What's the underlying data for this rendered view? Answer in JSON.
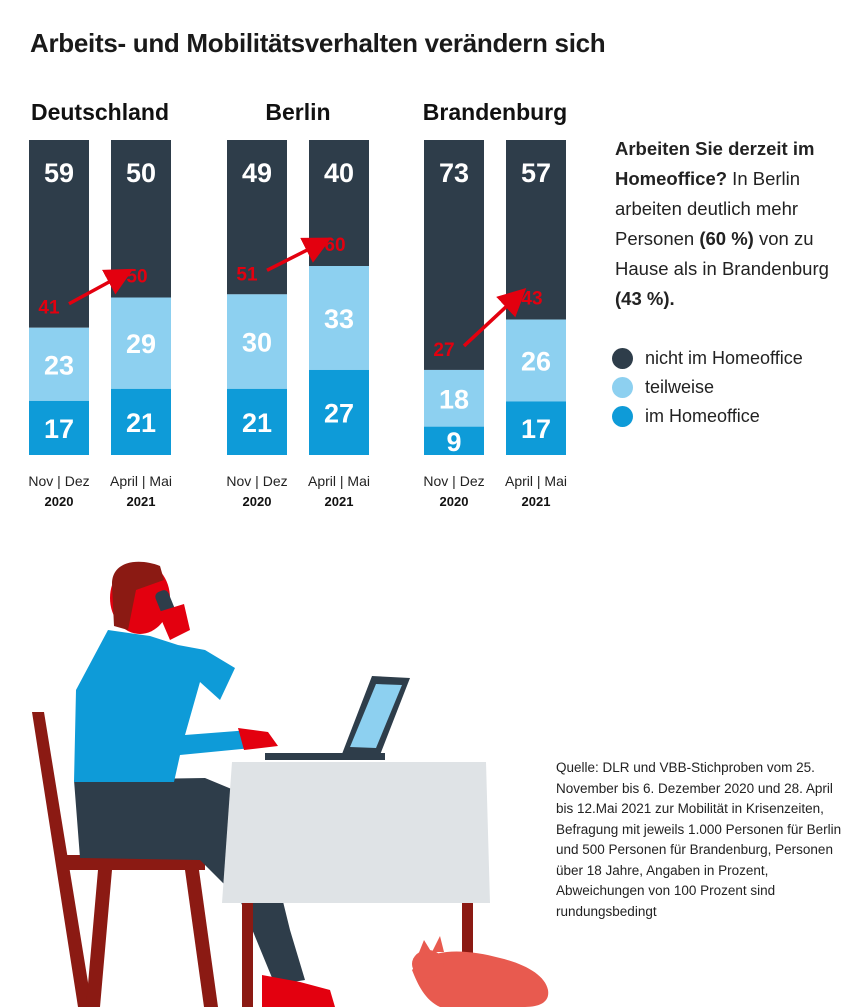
{
  "title": "Arbeits- und Mobilitätsverhalten verändern sich",
  "colors": {
    "nicht": "#2e3d4a",
    "teilweise": "#8dd0f0",
    "home": "#0e9bd8",
    "arrow": "#e3000f"
  },
  "question": {
    "bold": "Arbeiten Sie derzeit im Homeoffice?",
    "text_1": " In Berlin arbeiten deutlich mehr Personen ",
    "highlight_1": "(60 %)",
    "text_2": " von zu Hause als in Brandenburg ",
    "highlight_2": "(43 %)."
  },
  "legend": [
    {
      "label": "nicht im Homeoffice",
      "color": "#2e3d4a"
    },
    {
      "label": "teilweise",
      "color": "#8dd0f0"
    },
    {
      "label": "im Homeoffice",
      "color": "#0e9bd8"
    }
  ],
  "source": "Quelle: DLR und VBB-Stichproben vom 25. November bis 6. Dezember 2020 und 28. April bis 12.Mai 2021 zur Mobilität in Krisenzeiten, Befragung mit jeweils 1.000 Personen für Berlin und 500 Personen für Brandenburg, Personen über 18 Jahre, Angaben in Prozent, Abweichungen von 100 Prozent sind rundungsbedingt",
  "chart_data": {
    "type": "bar",
    "stacked": true,
    "unit": "%",
    "series": [
      {
        "name": "nicht im Homeoffice",
        "color": "#2e3d4a"
      },
      {
        "name": "teilweise",
        "color": "#8dd0f0"
      },
      {
        "name": "im Homeoffice",
        "color": "#0e9bd8"
      }
    ],
    "groups": [
      {
        "name": "Deutschland",
        "bars": [
          {
            "period": "Nov | Dez",
            "year": "2020",
            "values": [
              59,
              23,
              17
            ],
            "combined": "41"
          },
          {
            "period": "April | Mai",
            "year": "2021",
            "values": [
              50,
              29,
              21
            ],
            "combined": "50"
          }
        ]
      },
      {
        "name": "Berlin",
        "bars": [
          {
            "period": "Nov | Dez",
            "year": "2020",
            "values": [
              49,
              30,
              21
            ],
            "combined": "51"
          },
          {
            "period": "April | Mai",
            "year": "2021",
            "values": [
              40,
              33,
              27
            ],
            "combined": "60"
          }
        ]
      },
      {
        "name": "Brandenburg",
        "bars": [
          {
            "period": "Nov | Dez",
            "year": "2020",
            "values": [
              73,
              18,
              9
            ],
            "combined": "27"
          },
          {
            "period": "April | Mai",
            "year": "2021",
            "values": [
              57,
              26,
              17
            ],
            "combined": "43"
          }
        ]
      }
    ]
  }
}
